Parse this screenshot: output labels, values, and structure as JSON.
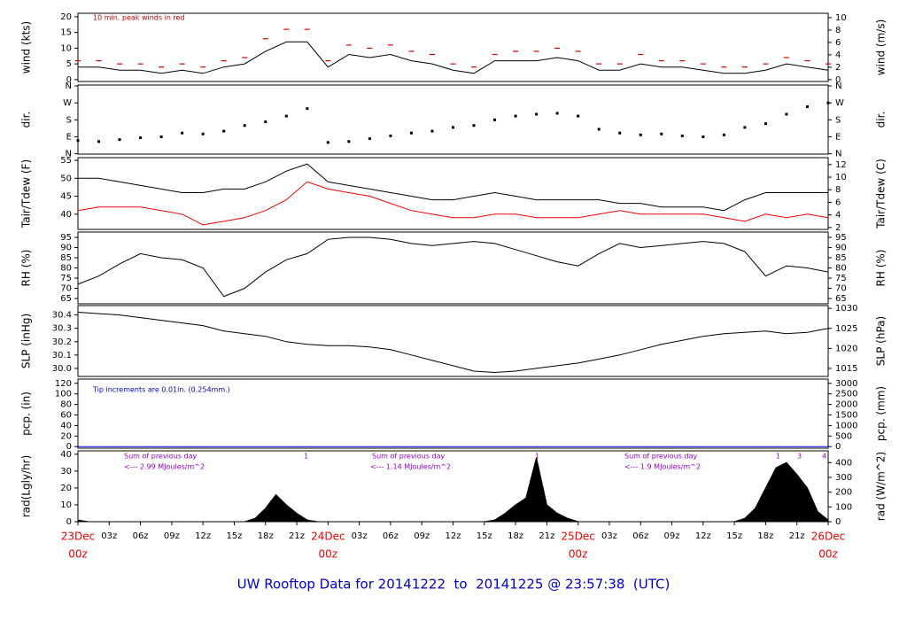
{
  "footer": "UW Rooftop Data for 20141222  to  20141225 @ 23:57:38  (UTC)",
  "chart_data": [
    {
      "type": "line",
      "ylabel": "wind (kts)",
      "y2label": "wind (m/s)",
      "xlim": [
        0,
        72
      ],
      "ylim": [
        -0.6,
        21.1
      ],
      "yticks": [
        0,
        5,
        10,
        15,
        20
      ],
      "y2lim": [
        -0.3,
        10.7
      ],
      "y2ticks": [
        0,
        2,
        4,
        6,
        8,
        10
      ],
      "annotations": [
        "10 min. peak winds in red"
      ],
      "annotation_color": "#cc0000",
      "x": [
        0,
        2,
        4,
        6,
        8,
        10,
        12,
        14,
        16,
        18,
        20,
        22,
        24,
        26,
        28,
        30,
        32,
        34,
        36,
        38,
        40,
        42,
        44,
        46,
        48,
        50,
        52,
        54,
        56,
        58,
        60,
        62,
        64,
        66,
        68,
        70,
        72
      ],
      "series": [
        {
          "name": "wind",
          "color": "#000000",
          "kind": "line",
          "values": [
            4,
            4,
            3,
            3,
            2,
            3,
            2,
            4,
            5,
            9,
            12,
            12,
            4,
            8,
            7,
            8,
            6,
            5,
            3,
            2,
            6,
            6,
            6,
            7,
            6,
            3,
            3,
            5,
            4,
            4,
            3,
            2,
            2,
            3,
            5,
            4,
            3
          ]
        },
        {
          "name": "peak",
          "color": "#dd0000",
          "kind": "dash",
          "values": [
            6,
            6,
            5,
            5,
            4,
            5,
            4,
            6,
            7,
            13,
            16,
            16,
            6,
            11,
            10,
            11,
            9,
            8,
            5,
            4,
            8,
            9,
            9,
            10,
            9,
            5,
            5,
            8,
            6,
            6,
            5,
            4,
            4,
            5,
            7,
            6,
            5
          ]
        }
      ]
    },
    {
      "type": "scatter",
      "ylabel": "dir.",
      "y2label": "dir.",
      "xlim": [
        0,
        72
      ],
      "ylim": [
        -2,
        365
      ],
      "yticks": [
        {
          "value": 0,
          "label": "N"
        },
        {
          "value": 90,
          "label": "E"
        },
        {
          "value": 180,
          "label": "S"
        },
        {
          "value": 270,
          "label": "W"
        },
        {
          "value": 360,
          "label": "N"
        }
      ],
      "y2lim": [
        -2,
        365
      ],
      "y2ticks": [
        {
          "value": 0,
          "label": "N"
        },
        {
          "value": 90,
          "label": "E"
        },
        {
          "value": 180,
          "label": "S"
        },
        {
          "value": 270,
          "label": "W"
        },
        {
          "value": 360,
          "label": "N"
        }
      ],
      "x": [
        0,
        2,
        4,
        6,
        8,
        10,
        12,
        14,
        16,
        18,
        20,
        22,
        24,
        26,
        28,
        30,
        32,
        34,
        36,
        38,
        40,
        42,
        44,
        46,
        48,
        50,
        52,
        54,
        56,
        58,
        60,
        62,
        64,
        66,
        68,
        70,
        72
      ],
      "series": [
        {
          "name": "dir",
          "color": "#000000",
          "kind": "points",
          "values": [
            70,
            65,
            75,
            85,
            90,
            110,
            105,
            120,
            150,
            170,
            200,
            240,
            60,
            65,
            80,
            95,
            110,
            120,
            140,
            150,
            180,
            200,
            210,
            215,
            200,
            130,
            110,
            100,
            105,
            95,
            90,
            100,
            140,
            160,
            210,
            250,
            270
          ]
        }
      ]
    },
    {
      "type": "line",
      "ylabel": "Tair/Tdew (F)",
      "y2label": "Tair/Tdew (C)",
      "xlim": [
        0,
        72
      ],
      "ylim": [
        35.75,
        55.75
      ],
      "yticks": [
        40,
        45,
        50,
        55
      ],
      "y2lim": [
        1.7,
        13.1
      ],
      "y2ticks": [
        2,
        4,
        6,
        8,
        10,
        12
      ],
      "x": [
        0,
        2,
        4,
        6,
        8,
        10,
        12,
        14,
        16,
        18,
        20,
        22,
        24,
        26,
        28,
        30,
        32,
        34,
        36,
        38,
        40,
        42,
        44,
        46,
        48,
        50,
        52,
        54,
        56,
        58,
        60,
        62,
        64,
        66,
        68,
        70,
        72
      ],
      "series": [
        {
          "name": "Tair",
          "color": "#000000",
          "kind": "line",
          "values": [
            50,
            50,
            49,
            48,
            47,
            46,
            46,
            47,
            47,
            49,
            52,
            54,
            49,
            48,
            47,
            46,
            45,
            44,
            44,
            45,
            46,
            45,
            44,
            44,
            44,
            44,
            43,
            43,
            42,
            42,
            42,
            41,
            44,
            46,
            46,
            46,
            46
          ]
        },
        {
          "name": "Tdew",
          "color": "#ee0000",
          "kind": "line",
          "values": [
            41,
            42,
            42,
            42,
            41,
            40,
            37,
            38,
            39,
            41,
            44,
            49,
            47,
            46,
            45,
            43,
            41,
            40,
            39,
            39,
            40,
            40,
            39,
            39,
            39,
            40,
            41,
            40,
            40,
            40,
            40,
            39,
            38,
            40,
            39,
            40,
            39
          ]
        }
      ]
    },
    {
      "type": "line",
      "ylabel": "RH (%)",
      "y2label": "RH (%)",
      "xlim": [
        0,
        72
      ],
      "ylim": [
        62.4,
        97.6
      ],
      "yticks": [
        65,
        70,
        75,
        80,
        85,
        90,
        95
      ],
      "y2lim": [
        62.4,
        97.6
      ],
      "y2ticks": [
        65,
        70,
        75,
        80,
        85,
        90,
        95
      ],
      "x": [
        0,
        2,
        4,
        6,
        8,
        10,
        12,
        14,
        16,
        18,
        20,
        22,
        24,
        26,
        28,
        30,
        32,
        34,
        36,
        38,
        40,
        42,
        44,
        46,
        48,
        50,
        52,
        54,
        56,
        58,
        60,
        62,
        64,
        66,
        68,
        70,
        72
      ],
      "series": [
        {
          "name": "RH",
          "color": "#000000",
          "kind": "line",
          "values": [
            72,
            76,
            82,
            87,
            85,
            84,
            80,
            66,
            70,
            78,
            84,
            87,
            94,
            95,
            95,
            94,
            92,
            91,
            92,
            93,
            92,
            89,
            86,
            83,
            81,
            87,
            92,
            90,
            91,
            92,
            93,
            92,
            88,
            76,
            81,
            80,
            78
          ]
        }
      ]
    },
    {
      "type": "line",
      "ylabel": "SLP (inHg)",
      "y2label": "SLP (hPa)",
      "xlim": [
        0,
        72
      ],
      "ylim": [
        29.94,
        30.47
      ],
      "yticks": [
        {
          "value": 30,
          "label": "30.0"
        },
        30.1,
        30.2,
        30.3,
        30.4
      ],
      "y2lim": [
        1013,
        1030.7
      ],
      "y2ticks": [
        1015,
        1020,
        1025,
        1030
      ],
      "x": [
        0,
        2,
        4,
        6,
        8,
        10,
        12,
        14,
        16,
        18,
        20,
        22,
        24,
        26,
        28,
        30,
        32,
        34,
        36,
        38,
        40,
        42,
        44,
        46,
        48,
        50,
        52,
        54,
        56,
        58,
        60,
        62,
        64,
        66,
        68,
        70,
        72
      ],
      "series": [
        {
          "name": "SLP",
          "color": "#000000",
          "kind": "line",
          "values": [
            30.42,
            30.41,
            30.4,
            30.38,
            30.36,
            30.34,
            30.32,
            30.28,
            30.26,
            30.24,
            30.2,
            30.18,
            30.17,
            30.17,
            30.16,
            30.14,
            30.1,
            30.06,
            30.02,
            29.98,
            29.97,
            29.98,
            30,
            30.02,
            30.04,
            30.07,
            30.1,
            30.14,
            30.18,
            30.21,
            30.24,
            30.26,
            30.27,
            30.28,
            30.26,
            30.27,
            30.3
          ]
        }
      ]
    },
    {
      "type": "line",
      "ylabel": "pcp. (in)",
      "y2label": "pcp. (mm)",
      "xlim": [
        0,
        72
      ],
      "ylim": [
        -3,
        128
      ],
      "yticks": [
        0,
        20,
        40,
        60,
        80,
        100,
        120
      ],
      "y2lim": [
        -75,
        3200
      ],
      "y2ticks": [
        0,
        500,
        1000,
        1500,
        2000,
        2500,
        3000
      ],
      "annotations": [
        "Tip increments are 0.01in. (0.254mm.)"
      ],
      "annotation_color": "#0000cc",
      "x": [
        0,
        72
      ],
      "series": [
        {
          "name": "pcp",
          "color": "#0000ff",
          "kind": "line",
          "values": [
            0,
            0
          ]
        }
      ]
    },
    {
      "type": "area",
      "ylabel": "rad(Lgly/hr)",
      "y2label": "rad (W/m^2)",
      "xlim": [
        0,
        72
      ],
      "ylim": [
        0,
        42
      ],
      "yticks": [
        0,
        10,
        20,
        30,
        40
      ],
      "y2lim": [
        0,
        480
      ],
      "y2ticks": [
        0,
        100,
        200,
        300,
        400
      ],
      "annotations": [
        "Sum of previous day",
        "<--- 2.99 MJoules/m^2",
        "Sum of previous day",
        "<--- 1.14 MJoules/m^2",
        "Sum of previous day",
        "<--- 1.9 MJoules/m^2",
        "1",
        "1",
        "1",
        "3",
        "4"
      ],
      "annotation_color": "#9900cc",
      "xticks": [
        {
          "value": 0,
          "label": "00z"
        },
        {
          "value": 3,
          "label": "03z"
        },
        {
          "value": 6,
          "label": "06z"
        },
        {
          "value": 9,
          "label": "09z"
        },
        {
          "value": 12,
          "label": "12z"
        },
        {
          "value": 15,
          "label": "15z"
        },
        {
          "value": 18,
          "label": "18z"
        },
        {
          "value": 21,
          "label": "21z"
        },
        {
          "value": 24,
          "label": "00z"
        },
        {
          "value": 27,
          "label": "03z"
        },
        {
          "value": 30,
          "label": "06z"
        },
        {
          "value": 33,
          "label": "09z"
        },
        {
          "value": 36,
          "label": "12z"
        },
        {
          "value": 39,
          "label": "15z"
        },
        {
          "value": 42,
          "label": "18z"
        },
        {
          "value": 45,
          "label": "21z"
        },
        {
          "value": 48,
          "label": "00z"
        },
        {
          "value": 51,
          "label": "03z"
        },
        {
          "value": 54,
          "label": "06z"
        },
        {
          "value": 57,
          "label": "09z"
        },
        {
          "value": 60,
          "label": "12z"
        },
        {
          "value": 63,
          "label": "15z"
        },
        {
          "value": 66,
          "label": "18z"
        },
        {
          "value": 69,
          "label": "21z"
        },
        {
          "value": 72,
          "label": "00z"
        }
      ],
      "day_ticks": [
        {
          "value": 0,
          "label": "23Dec"
        },
        {
          "value": 24,
          "label": "24Dec"
        },
        {
          "value": 48,
          "label": "25Dec"
        },
        {
          "value": 72,
          "label": "26Dec"
        }
      ],
      "day_color": "#ee0000",
      "x": [
        0,
        1,
        2,
        3,
        4,
        5,
        6,
        7,
        8,
        9,
        10,
        11,
        12,
        13,
        14,
        15,
        16,
        17,
        18,
        19,
        20,
        21,
        22,
        23,
        24,
        25,
        26,
        27,
        28,
        29,
        30,
        31,
        32,
        33,
        34,
        35,
        36,
        37,
        38,
        39,
        40,
        41,
        42,
        43,
        44,
        45,
        46,
        47,
        48,
        49,
        50,
        51,
        52,
        53,
        54,
        55,
        56,
        57,
        58,
        59,
        60,
        61,
        62,
        63,
        64,
        65,
        66,
        67,
        68,
        69,
        70,
        71,
        72
      ],
      "series": [
        {
          "name": "rad",
          "color": "#000000",
          "kind": "area",
          "values": [
            1,
            0,
            0,
            0,
            0,
            0,
            0,
            0,
            0,
            0,
            0,
            0,
            0,
            0,
            0,
            0,
            0,
            2,
            8,
            16,
            10,
            5,
            1,
            0,
            0,
            0,
            0,
            0,
            0,
            0,
            0,
            0,
            0,
            0,
            0,
            0,
            0,
            0,
            0,
            0,
            1,
            5,
            10,
            14,
            38,
            10,
            5,
            2,
            0,
            0,
            0,
            0,
            0,
            0,
            0,
            0,
            0,
            0,
            0,
            0,
            0,
            0,
            0,
            0,
            2,
            8,
            20,
            32,
            35,
            28,
            20,
            6,
            1
          ]
        }
      ]
    }
  ]
}
